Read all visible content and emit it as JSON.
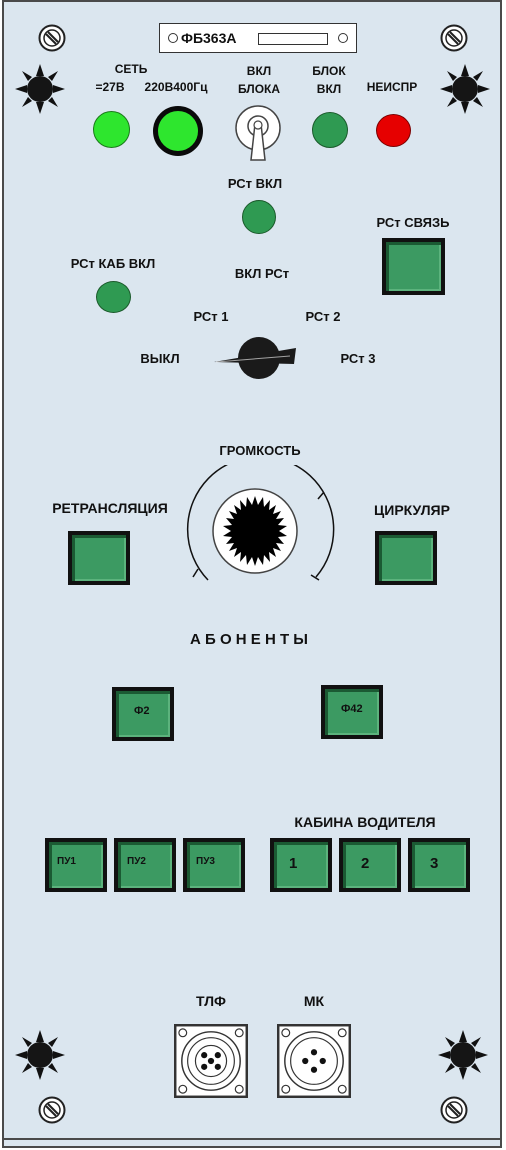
{
  "panel": {
    "model_plate": "ФБ363А"
  },
  "indicators": {
    "set_label": "СЕТЬ",
    "dc27_label": "=27В",
    "ac220_label": "220В400Гц",
    "vkl_bloka_label": "ВКЛ\nБЛОКА",
    "blok_vkl_label": "БЛОК\nВКЛ",
    "neispr_label": "НЕИСПР",
    "colors": {
      "bright_green": "#2ee62e",
      "dark_green": "#2f9a52",
      "red": "#e60000",
      "button_green": "#3c9a62"
    }
  },
  "radio_station": {
    "rst_vkl_label": "РСт ВКЛ",
    "rst_svyaz_label": "РСт СВЯЗЬ",
    "rst_kab_vkl_label": "РСт КАБ ВКЛ",
    "vkl_rst_label": "ВКЛ РСт",
    "rst1_label": "РСт 1",
    "rst2_label": "РСт 2",
    "rst3_label": "РСт 3",
    "vykl_label": "ВЫКЛ"
  },
  "volume": {
    "label": "ГРОМКОСТЬ",
    "retranslation_label": "РЕТРАНСЛЯЦИЯ",
    "circular_label": "ЦИРКУЛЯР"
  },
  "subscribers": {
    "title": "А Б О Н Е Н Т Ы",
    "f2_label": "Ф2",
    "f42_label": "Ф42"
  },
  "control_units": {
    "pu1_label": "ПУ1",
    "pu2_label": "ПУ2",
    "pu3_label": "ПУ3"
  },
  "driver_cabin": {
    "title": "КАБИНА ВОДИТЕЛЯ",
    "b1_label": "1",
    "b2_label": "2",
    "b3_label": "3"
  },
  "connectors": {
    "tlf_label": "ТЛФ",
    "mk_label": "МК"
  }
}
